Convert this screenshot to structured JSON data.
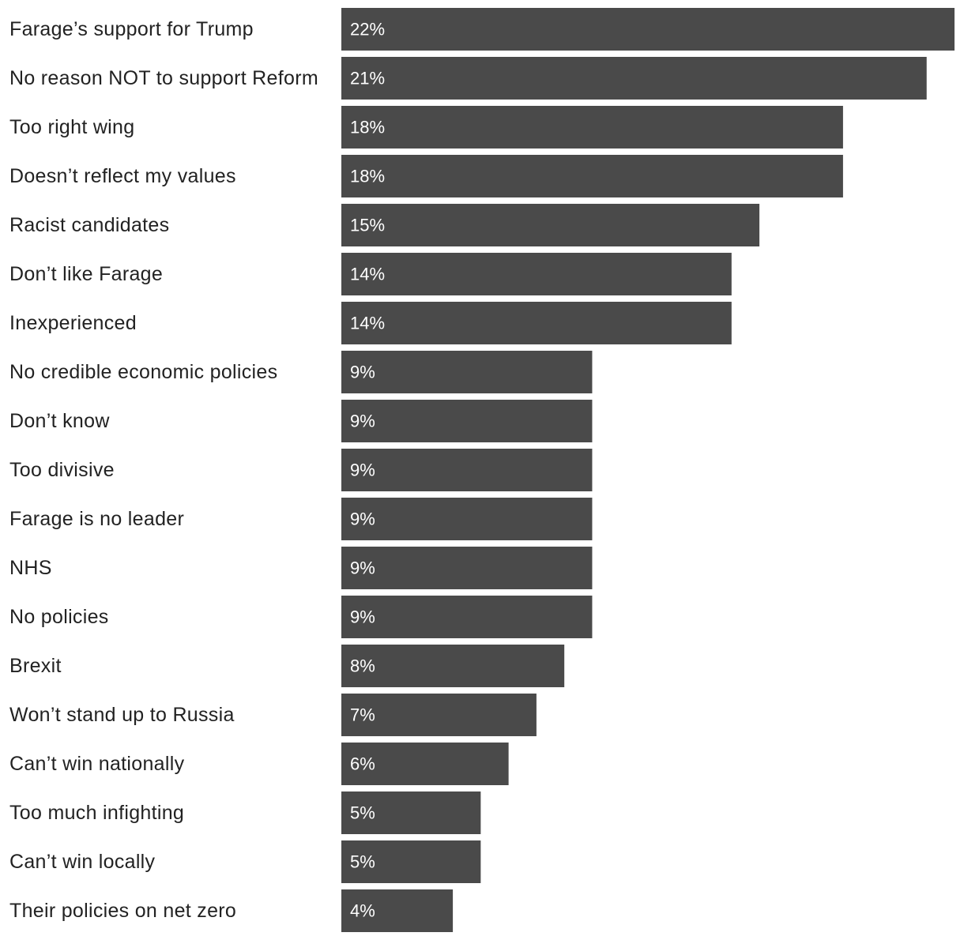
{
  "chart_data": {
    "type": "bar",
    "orientation": "horizontal",
    "title": "",
    "xlabel": "",
    "ylabel": "",
    "xlim": [
      0,
      22
    ],
    "grid": false,
    "legend": "none",
    "bar_color": "#4a4a4a",
    "value_label_color": "#ffffff",
    "label_color": "#222222",
    "value_suffix": "%",
    "categories": [
      "Farage’s support for Trump",
      "No reason NOT to support Reform",
      "Too right wing",
      "Doesn’t reflect my values",
      "Racist candidates",
      "Don’t like Farage",
      "Inexperienced",
      "No credible economic policies",
      "Don’t know",
      "Too divisive",
      "Farage is no leader",
      "NHS",
      "No policies",
      "Brexit",
      "Won’t stand up to Russia",
      "Can’t win nationally",
      "Too much infighting",
      "Can’t win locally",
      "Their policies on net zero"
    ],
    "values": [
      22,
      21,
      18,
      18,
      15,
      14,
      14,
      9,
      9,
      9,
      9,
      9,
      9,
      8,
      7,
      6,
      5,
      5,
      4
    ],
    "data_labels": [
      "22%",
      "21%",
      "18%",
      "18%",
      "15%",
      "14%",
      "14%",
      "9%",
      "9%",
      "9%",
      "9%",
      "9%",
      "9%",
      "8%",
      "7%",
      "6%",
      "5%",
      "5%",
      "4%"
    ]
  }
}
